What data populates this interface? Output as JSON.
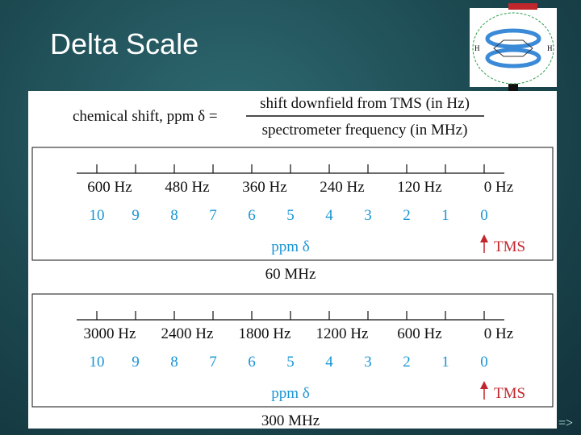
{
  "slide": {
    "title": "Delta Scale",
    "footer": "=>"
  },
  "image": {
    "labels": [
      "H",
      "H"
    ]
  },
  "formula": {
    "lhs": "chemical shift, ppm δ =",
    "numerator": "shift downfield from TMS (in Hz)",
    "denominator": "spectrometer frequency (in MHz)"
  },
  "scales": [
    {
      "hz_labels": [
        "600 Hz",
        "480 Hz",
        "360 Hz",
        "240 Hz",
        "120 Hz",
        "0 Hz"
      ],
      "ppm_labels": [
        "10",
        "9",
        "8",
        "7",
        "6",
        "5",
        "4",
        "3",
        "2",
        "1",
        "0"
      ],
      "axis_label": "ppm δ",
      "reference": "TMS",
      "frequency": "60 MHz"
    },
    {
      "hz_labels": [
        "3000 Hz",
        "2400 Hz",
        "1800 Hz",
        "1200 Hz",
        "600 Hz",
        "0 Hz"
      ],
      "ppm_labels": [
        "10",
        "9",
        "8",
        "7",
        "6",
        "5",
        "4",
        "3",
        "2",
        "1",
        "0"
      ],
      "axis_label": "ppm δ",
      "reference": "TMS",
      "frequency": "300 MHz"
    }
  ]
}
